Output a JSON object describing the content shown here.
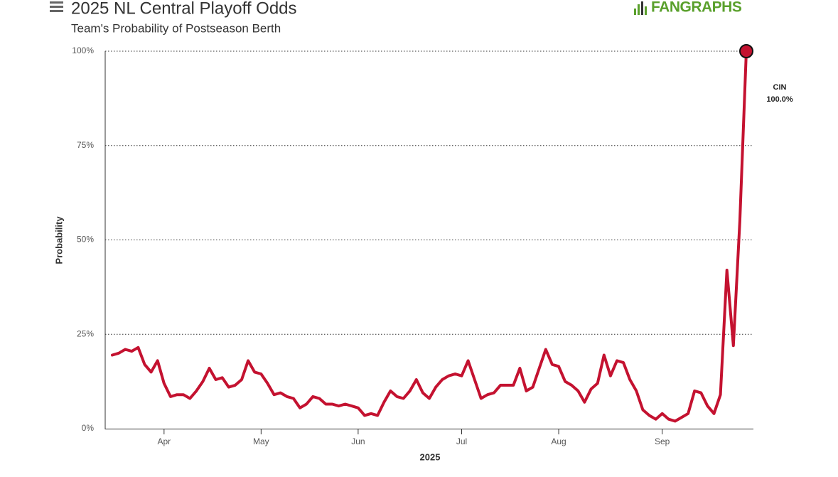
{
  "chart_data": {
    "type": "line",
    "title": "2025 NL Central Playoff Odds",
    "subtitle": "Team's Probability of Postseason Berth",
    "logo": "FANGRAPHS",
    "xlabel": "2025",
    "ylabel": "Probability",
    "categories": [
      null,
      null,
      null,
      null,
      null,
      null,
      null,
      null,
      "Apr",
      null,
      null,
      null,
      null,
      null,
      null,
      null,
      null,
      null,
      null,
      null,
      null,
      null,
      null,
      "May",
      null,
      null,
      null,
      null,
      null,
      null,
      null,
      null,
      null,
      null,
      null,
      null,
      null,
      null,
      "Jun",
      null,
      null,
      null,
      null,
      null,
      null,
      null,
      null,
      null,
      null,
      null,
      null,
      null,
      null,
      null,
      "Jul",
      null,
      null,
      null,
      null,
      null,
      null,
      null,
      null,
      null,
      null,
      null,
      null,
      null,
      null,
      "Aug",
      null,
      null,
      null,
      null,
      null,
      null,
      null,
      null,
      null,
      null,
      null,
      null,
      null,
      null,
      null,
      "Sep",
      null,
      null,
      null,
      null,
      null,
      null,
      null,
      null,
      null,
      null,
      null,
      null,
      null
    ],
    "series": [
      {
        "name": "CIN",
        "color": "#c41230",
        "values": [
          19.5,
          20,
          21,
          20.5,
          21.5,
          17,
          15,
          18,
          12,
          8.5,
          9,
          9,
          8,
          10,
          12.5,
          16,
          13,
          13.5,
          11,
          11.5,
          13,
          18,
          15,
          14.5,
          12,
          9,
          9.5,
          8.5,
          8,
          5.5,
          6.5,
          8.5,
          8,
          6.5,
          6.5,
          6,
          6.5,
          6,
          5.5,
          3.5,
          4,
          3.5,
          7,
          10,
          8.5,
          8,
          10,
          13,
          9.5,
          8,
          11,
          13,
          14,
          14.5,
          14,
          18,
          13,
          8,
          9,
          9.5,
          11.5,
          11.5,
          11.5,
          16,
          10,
          11,
          16,
          21,
          17,
          16.5,
          12.5,
          11.5,
          10,
          7,
          10.5,
          12,
          19.5,
          14,
          18,
          17.5,
          13,
          10,
          5,
          3.5,
          2.5,
          4,
          2.5,
          2,
          3,
          4,
          10,
          9.5,
          6,
          4,
          9,
          42,
          22,
          55,
          100
        ],
        "value_labels": [
          null,
          null,
          null,
          null,
          null,
          null,
          null,
          null,
          null,
          null,
          null,
          null,
          null,
          null,
          null,
          null,
          null,
          null,
          null,
          null,
          null,
          null,
          null,
          null,
          null,
          null,
          null,
          null,
          null,
          null,
          null,
          null,
          null,
          null,
          null,
          null,
          null,
          null,
          null,
          null,
          null,
          null,
          null,
          null,
          null,
          null,
          null,
          null,
          null,
          null,
          null,
          null,
          null,
          null,
          null,
          null,
          null,
          null,
          null,
          null,
          null,
          null,
          null,
          null,
          null,
          null,
          null,
          null,
          null,
          null,
          null,
          null,
          null,
          null,
          null,
          null,
          null,
          null,
          null,
          null,
          null,
          null,
          null,
          null,
          null,
          null,
          null,
          null,
          null,
          null,
          null,
          null,
          null,
          null,
          null,
          null,
          null,
          null,
          "100.0%"
        ]
      }
    ],
    "ylim": [
      0,
      100
    ],
    "yticks": [
      {
        "value": 0,
        "label": "0%"
      },
      {
        "value": 25,
        "label": "25%"
      },
      {
        "value": 50,
        "label": "50%"
      },
      {
        "value": 75,
        "label": "75%"
      },
      {
        "value": 100,
        "label": "100%"
      }
    ],
    "grid": true
  }
}
